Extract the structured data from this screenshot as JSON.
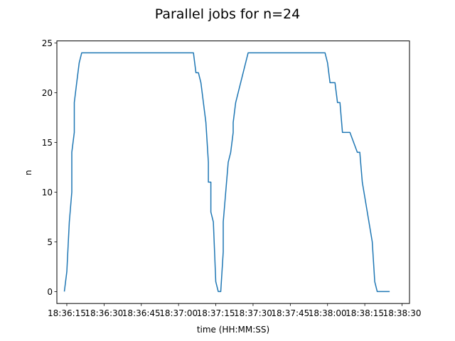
{
  "chart_data": {
    "type": "line",
    "title": "Parallel jobs for n=24",
    "xlabel": "time (HH:MM:SS)",
    "ylabel": "n",
    "grid": false,
    "xlim": [
      "18:36:11",
      "18:38:33"
    ],
    "ylim": [
      -1.2,
      25.2
    ],
    "x_ticks": [
      "18:36:15",
      "18:36:30",
      "18:36:45",
      "18:37:00",
      "18:37:15",
      "18:37:30",
      "18:37:45",
      "18:38:00",
      "18:38:15",
      "18:38:30"
    ],
    "y_ticks": [
      0,
      5,
      10,
      15,
      20,
      25
    ],
    "series": [
      {
        "color": "#1f77b4",
        "x": [
          "18:36:14",
          "18:36:15",
          "18:36:16",
          "18:36:17",
          "18:36:17",
          "18:36:18",
          "18:36:18",
          "18:36:19",
          "18:36:19",
          "18:36:20",
          "18:36:21",
          "18:36:22",
          "18:36:23",
          "18:36:24",
          "18:36:25",
          "18:37:06",
          "18:37:07",
          "18:37:08",
          "18:37:09",
          "18:37:09",
          "18:37:10",
          "18:37:11",
          "18:37:12",
          "18:37:12",
          "18:37:13",
          "18:37:13",
          "18:37:14",
          "18:37:15",
          "18:37:16",
          "18:37:17",
          "18:37:18",
          "18:37:18",
          "18:37:19",
          "18:37:20",
          "18:37:21",
          "18:37:22",
          "18:37:22",
          "18:37:23",
          "18:37:24",
          "18:37:25",
          "18:37:26",
          "18:37:27",
          "18:37:28",
          "18:37:29",
          "18:37:39",
          "18:37:59",
          "18:38:00",
          "18:38:01",
          "18:38:03",
          "18:38:04",
          "18:38:05",
          "18:38:06",
          "18:38:09",
          "18:38:12",
          "18:38:13",
          "18:38:14",
          "18:38:16",
          "18:38:18",
          "18:38:19",
          "18:38:20",
          "18:38:21",
          "18:38:22",
          "18:38:25"
        ],
        "y": [
          0,
          2,
          7,
          10,
          14,
          16,
          19,
          21,
          21,
          23,
          24,
          24,
          24,
          24,
          24,
          24,
          22,
          22,
          21,
          21,
          19,
          17,
          13,
          11,
          11,
          8,
          7,
          1,
          0,
          0,
          4,
          7,
          10,
          13,
          14,
          16,
          17,
          19,
          20,
          21,
          22,
          23,
          24,
          24,
          24,
          24,
          23,
          21,
          21,
          19,
          19,
          16,
          16,
          14,
          14,
          11,
          8,
          5,
          1,
          0,
          0,
          0,
          0
        ]
      }
    ]
  }
}
